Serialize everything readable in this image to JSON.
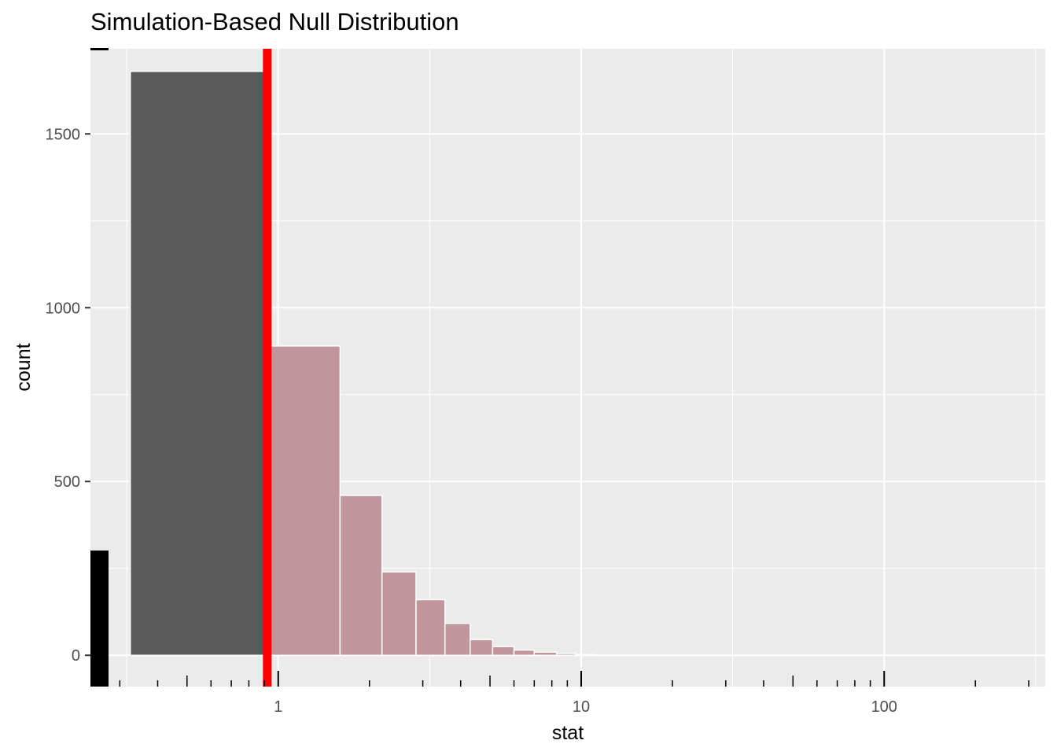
{
  "chart_data": {
    "type": "bar",
    "title": "Simulation-Based Null Distribution",
    "xlabel": "stat",
    "ylabel": "count",
    "x_scale": "log10",
    "xlim": [
      0.24,
      340
    ],
    "ylim": [
      -90,
      1745
    ],
    "x_ticks": [
      {
        "value": 1,
        "label": "1"
      },
      {
        "value": 10,
        "label": "10"
      },
      {
        "value": 100,
        "label": "100"
      }
    ],
    "y_ticks": [
      {
        "value": 0,
        "label": "0"
      },
      {
        "value": 500,
        "label": "500"
      },
      {
        "value": 1000,
        "label": "1000"
      },
      {
        "value": 1500,
        "label": "1500"
      }
    ],
    "observed_stat": 0.92,
    "observed_line_color": "#ff0000",
    "colors": {
      "unshaded": "#595959",
      "shaded": "#c0969c",
      "panel": "#ebebeb",
      "grid": "#ffffff"
    },
    "bins": [
      {
        "x0": 0.325,
        "x1": 0.93,
        "count": 1680,
        "shaded": false
      },
      {
        "x0": 0.93,
        "x1": 1.6,
        "count": 890,
        "shaded": true
      },
      {
        "x0": 1.6,
        "x1": 2.2,
        "count": 460,
        "shaded": true
      },
      {
        "x0": 2.2,
        "x1": 2.85,
        "count": 240,
        "shaded": true
      },
      {
        "x0": 2.85,
        "x1": 3.55,
        "count": 160,
        "shaded": true
      },
      {
        "x0": 3.55,
        "x1": 4.3,
        "count": 92,
        "shaded": true
      },
      {
        "x0": 4.3,
        "x1": 5.1,
        "count": 45,
        "shaded": true
      },
      {
        "x0": 5.1,
        "x1": 6.0,
        "count": 25,
        "shaded": true
      },
      {
        "x0": 6.0,
        "x1": 7.0,
        "count": 15,
        "shaded": true
      },
      {
        "x0": 7.0,
        "x1": 8.3,
        "count": 9,
        "shaded": true
      },
      {
        "x0": 8.3,
        "x1": 9.6,
        "count": 5,
        "shaded": true
      },
      {
        "x0": 9.6,
        "x1": 11.0,
        "count": 2,
        "shaded": true
      }
    ]
  }
}
